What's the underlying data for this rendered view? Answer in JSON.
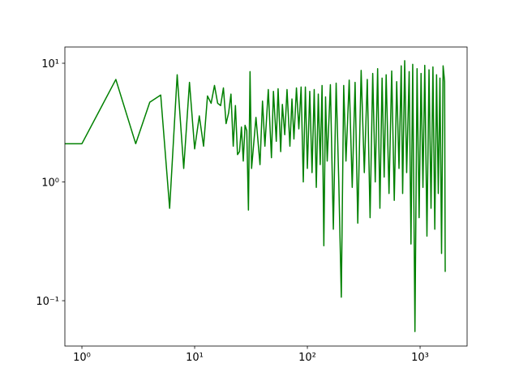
{
  "chart_data": {
    "type": "line",
    "xscale": "log",
    "yscale": "log",
    "x": [
      0,
      1,
      2,
      3,
      4,
      5,
      6,
      7,
      8,
      9,
      10,
      11,
      12,
      13,
      14,
      15,
      16,
      17,
      18,
      19,
      20,
      21,
      22,
      23,
      24,
      25,
      26,
      27,
      28,
      29,
      30,
      31,
      32,
      35,
      38,
      40,
      42,
      45,
      48,
      50,
      53,
      55,
      58,
      60,
      63,
      66,
      70,
      73,
      76,
      80,
      84,
      88,
      92,
      96,
      100,
      105,
      110,
      115,
      120,
      125,
      130,
      135,
      140,
      145,
      150,
      160,
      170,
      180,
      190,
      200,
      210,
      220,
      235,
      250,
      265,
      280,
      300,
      320,
      340,
      360,
      380,
      400,
      420,
      440,
      460,
      480,
      500,
      530,
      560,
      590,
      620,
      650,
      680,
      700,
      730,
      760,
      800,
      830,
      860,
      900,
      940,
      980,
      1020,
      1060,
      1100,
      1150,
      1200,
      1250,
      1300,
      1350,
      1400,
      1450,
      1500,
      1550,
      1600,
      1650,
      1670
    ],
    "series": [
      {
        "color": "#008000",
        "values": [
          2.1,
          2.1,
          7.3,
          2.1,
          4.7,
          5.4,
          0.6,
          8.0,
          1.3,
          6.9,
          1.9,
          3.6,
          2.0,
          5.3,
          4.6,
          6.5,
          4.6,
          4.4,
          6.2,
          3.1,
          3.8,
          5.5,
          2.0,
          4.4,
          1.7,
          1.8,
          2.9,
          1.5,
          3.0,
          2.7,
          0.58,
          8.5,
          1.3,
          3.5,
          1.4,
          4.8,
          2.0,
          6.0,
          1.6,
          5.8,
          2.2,
          6.1,
          1.8,
          4.5,
          2.5,
          6.0,
          2.0,
          5.0,
          2.3,
          6.2,
          2.8,
          6.3,
          1.0,
          6.3,
          1.3,
          5.8,
          1.2,
          6.0,
          0.9,
          5.5,
          1.4,
          6.5,
          0.29,
          5.2,
          1.5,
          6.6,
          0.4,
          6.8,
          1.0,
          0.107,
          6.5,
          1.5,
          7.2,
          0.9,
          6.9,
          0.45,
          8.7,
          1.2,
          7.3,
          0.5,
          8.2,
          1.0,
          9.0,
          0.6,
          7.5,
          1.1,
          8.0,
          0.8,
          8.6,
          0.7,
          7.0,
          1.3,
          9.5,
          0.8,
          10.5,
          1.2,
          8.5,
          0.3,
          9.8,
          0.055,
          9.0,
          0.5,
          8.2,
          0.9,
          9.6,
          0.35,
          8.8,
          0.6,
          9.3,
          0.4,
          8.0,
          0.8,
          7.5,
          0.25,
          9.5,
          7.0,
          0.175
        ]
      }
    ],
    "xlim": [
      0.706,
      2612
    ],
    "ylim": [
      0.0415,
      13.7
    ],
    "xticks": [
      {
        "value": 1,
        "label": "10⁰"
      },
      {
        "value": 10,
        "label": "10¹"
      },
      {
        "value": 100,
        "label": "10²"
      },
      {
        "value": 1000,
        "label": "10³"
      }
    ],
    "yticks": [
      {
        "value": 0.1,
        "label": "10⁻¹"
      },
      {
        "value": 1,
        "label": "10⁰"
      },
      {
        "value": 10,
        "label": "10¹"
      }
    ]
  }
}
